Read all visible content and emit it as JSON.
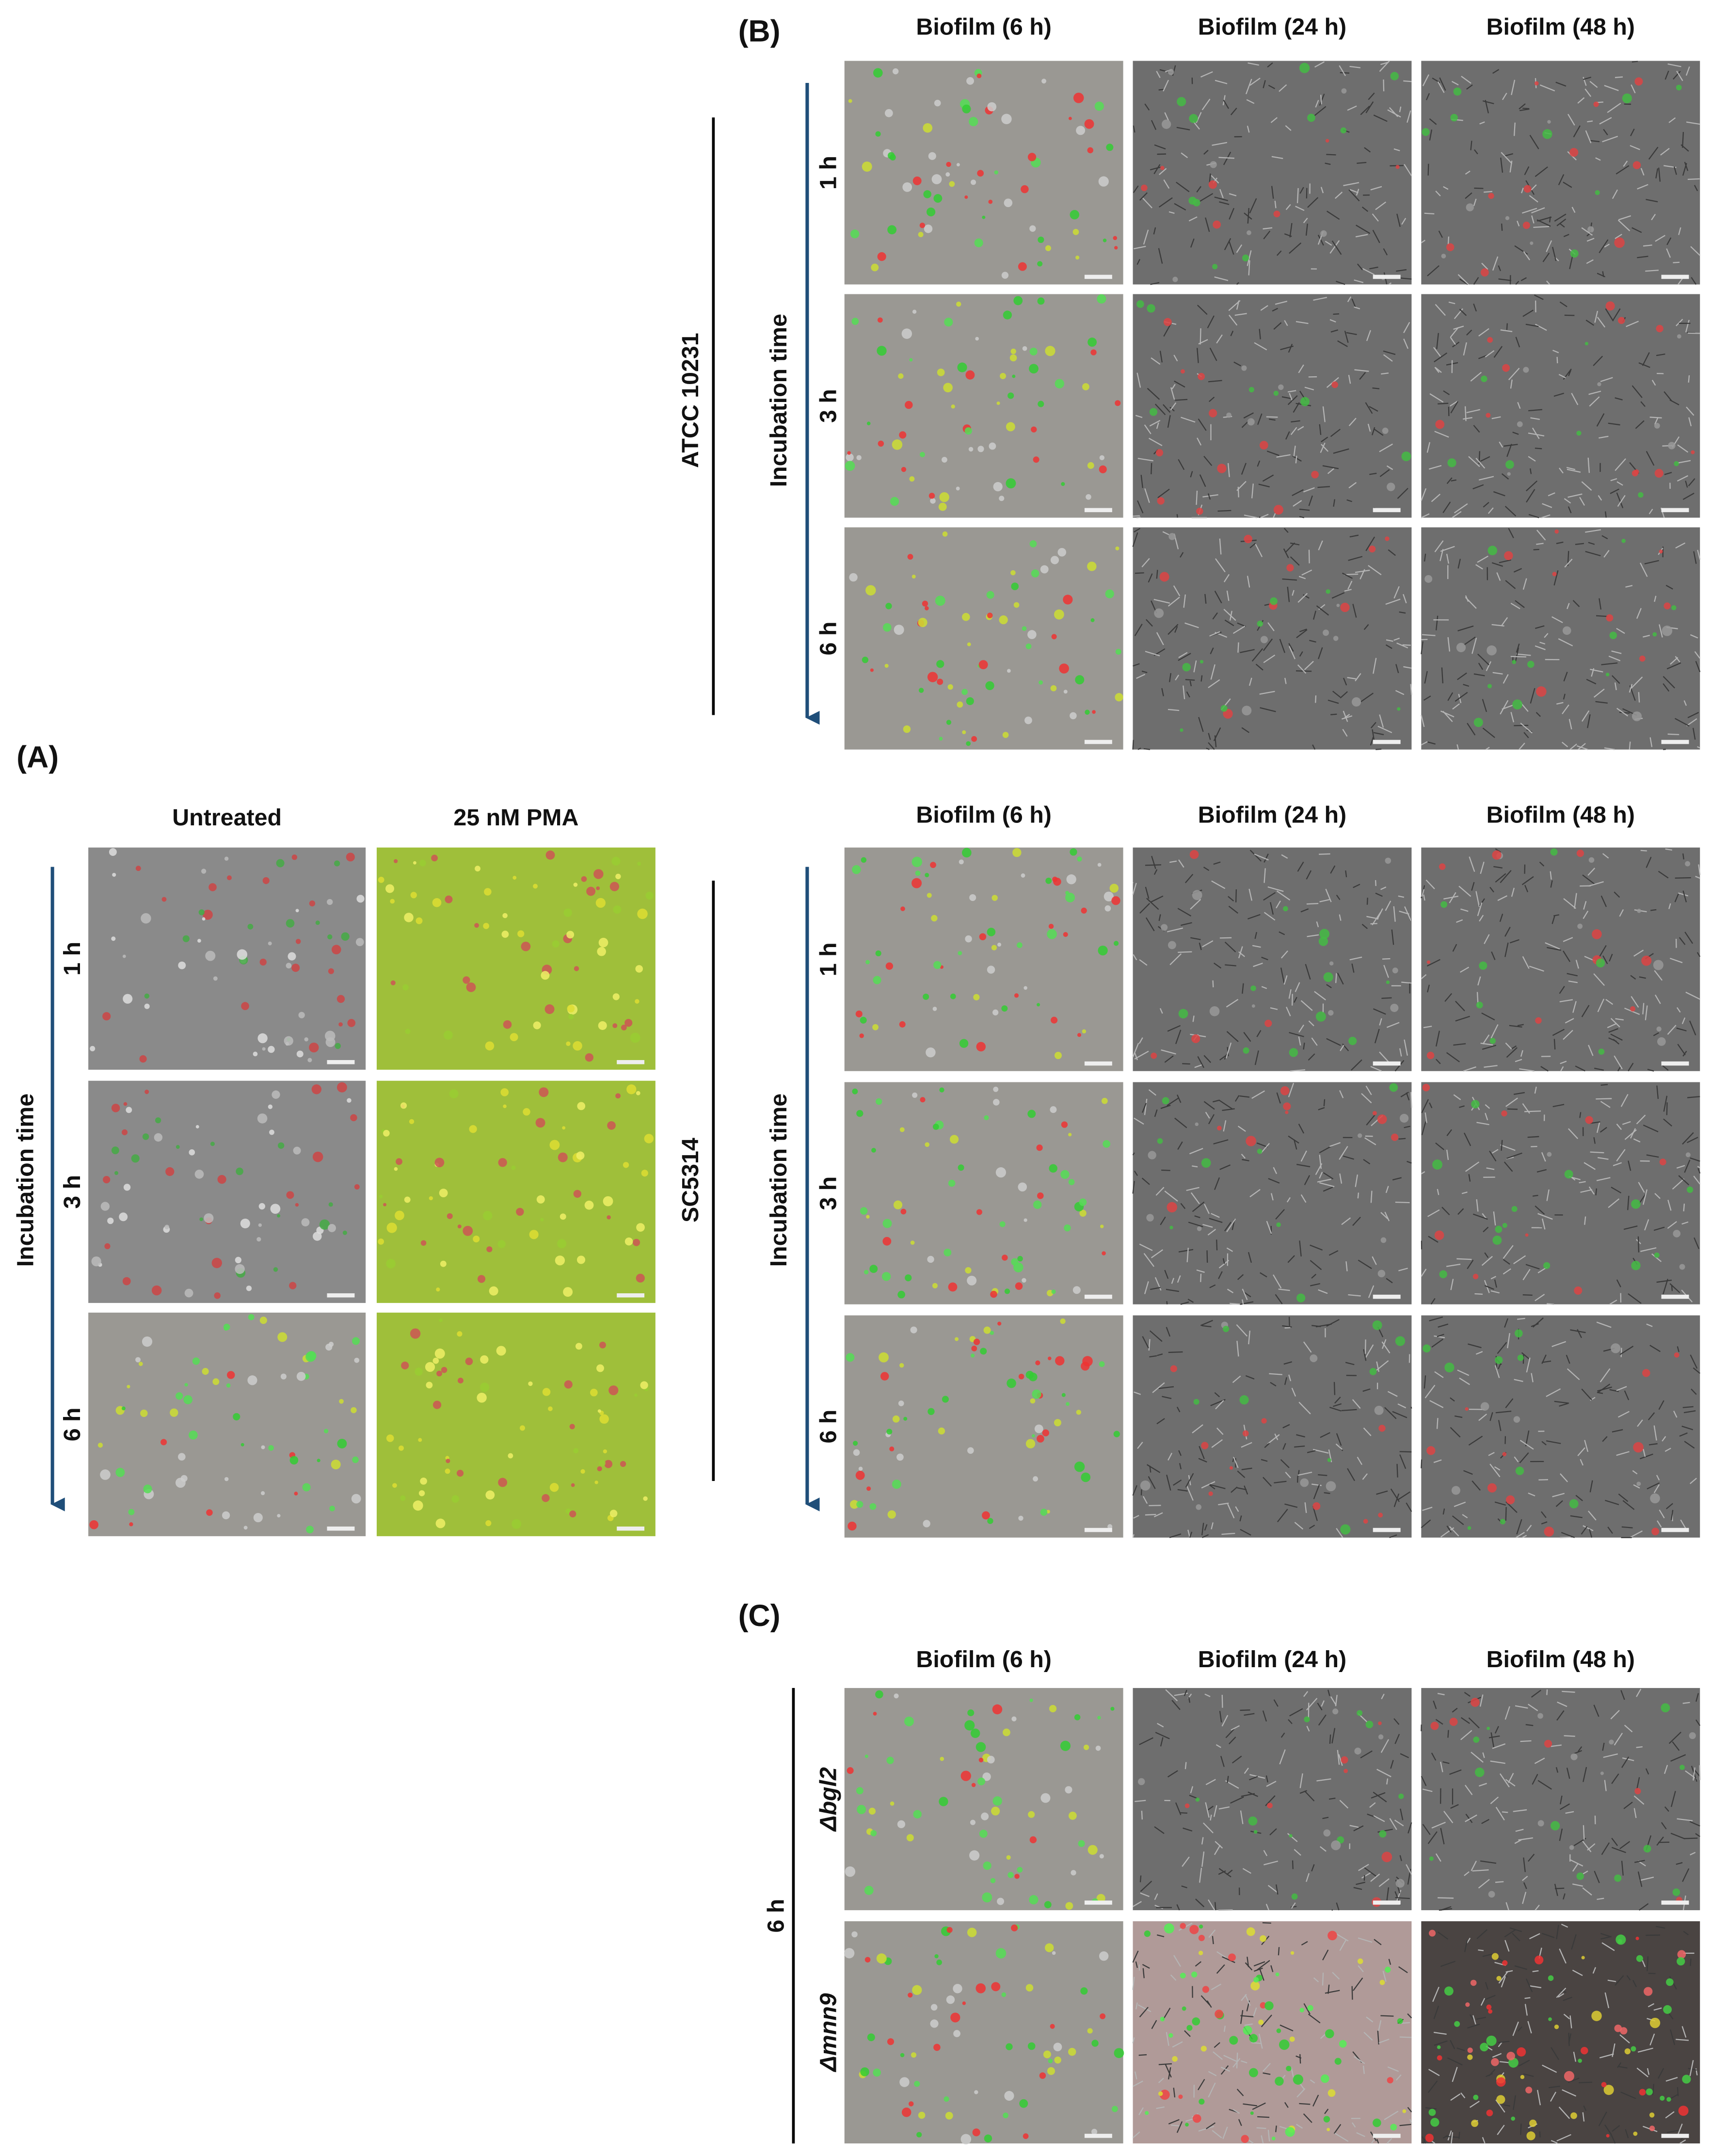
{
  "panels": [
    {
      "label": "(A)",
      "columns": [
        "Untreated",
        "25 nM PMA"
      ],
      "axis_label": "Incubation time",
      "rows": [
        "1 h",
        "3 h",
        "6 h"
      ]
    },
    {
      "label": "(B)",
      "groups": [
        {
          "strain": "ATCC 10231",
          "columns": [
            "Biofilm (6 h)",
            "Biofilm (24 h)",
            "Biofilm (48 h)"
          ],
          "axis_label": "Incubation time",
          "rows": [
            "1 h",
            "3 h",
            "6 h"
          ]
        },
        {
          "strain": "SC5314",
          "columns": [
            "Biofilm (6 h)",
            "Biofilm (24 h)",
            "Biofilm (48 h)"
          ],
          "axis_label": "Incubation time",
          "rows": [
            "1 h",
            "3 h",
            "6 h"
          ]
        }
      ]
    },
    {
      "label": "(C)",
      "columns": [
        "Biofilm (6 h)",
        "Biofilm (24 h)",
        "Biofilm (48 h)"
      ],
      "time": "6 h",
      "rows": [
        "Δbgl2",
        "Δmnn9"
      ]
    }
  ]
}
